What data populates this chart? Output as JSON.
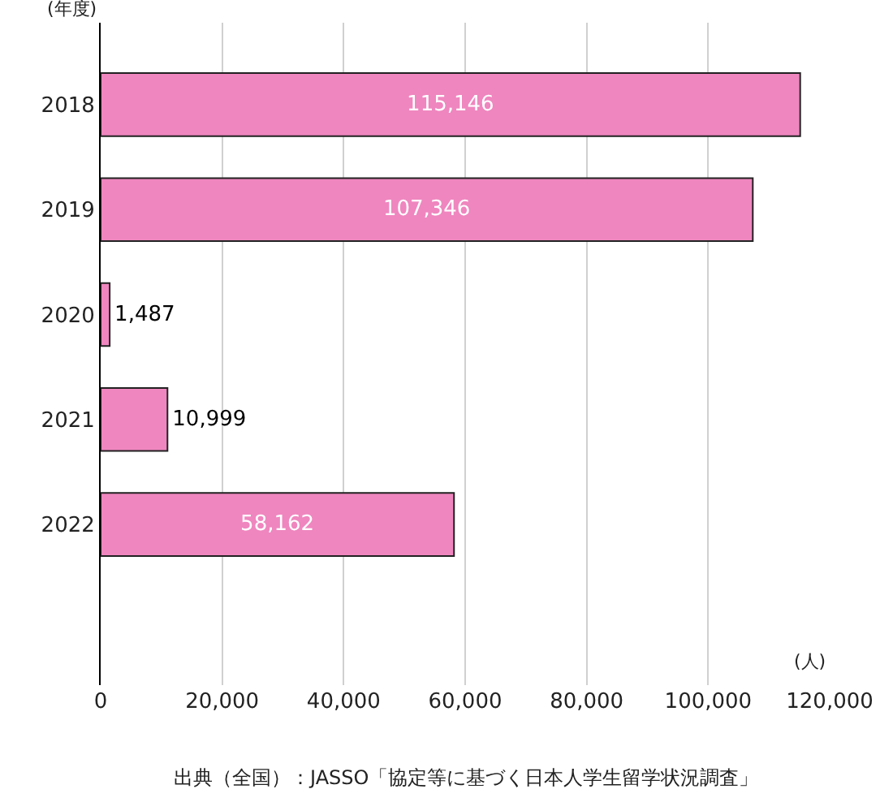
{
  "chart_data": {
    "type": "bar",
    "orientation": "horizontal",
    "categories": [
      "2018",
      "2019",
      "2020",
      "2021",
      "2022"
    ],
    "values": [
      115146,
      107346,
      1487,
      10999,
      58162
    ],
    "value_labels": [
      "115,146",
      "107,346",
      "1,487",
      "10,999",
      "58,162"
    ],
    "color": "#ef86bf",
    "xlim": [
      0,
      120000
    ],
    "xticks": [
      {
        "value": 0,
        "label": "0"
      },
      {
        "value": 20000,
        "label": "20,000"
      },
      {
        "value": 40000,
        "label": "40,000"
      },
      {
        "value": 60000,
        "label": "60,000"
      },
      {
        "value": 80000,
        "label": "80,000"
      },
      {
        "value": 100000,
        "label": "100,000"
      },
      {
        "value": 120000,
        "label": "120,000"
      }
    ],
    "ylabel": "(年度)",
    "xlabel": "(人)",
    "grid": "x",
    "annotations": [
      "出典（全国）：JASSO「協定等に基づく日本人学生留学状況調査」"
    ]
  }
}
